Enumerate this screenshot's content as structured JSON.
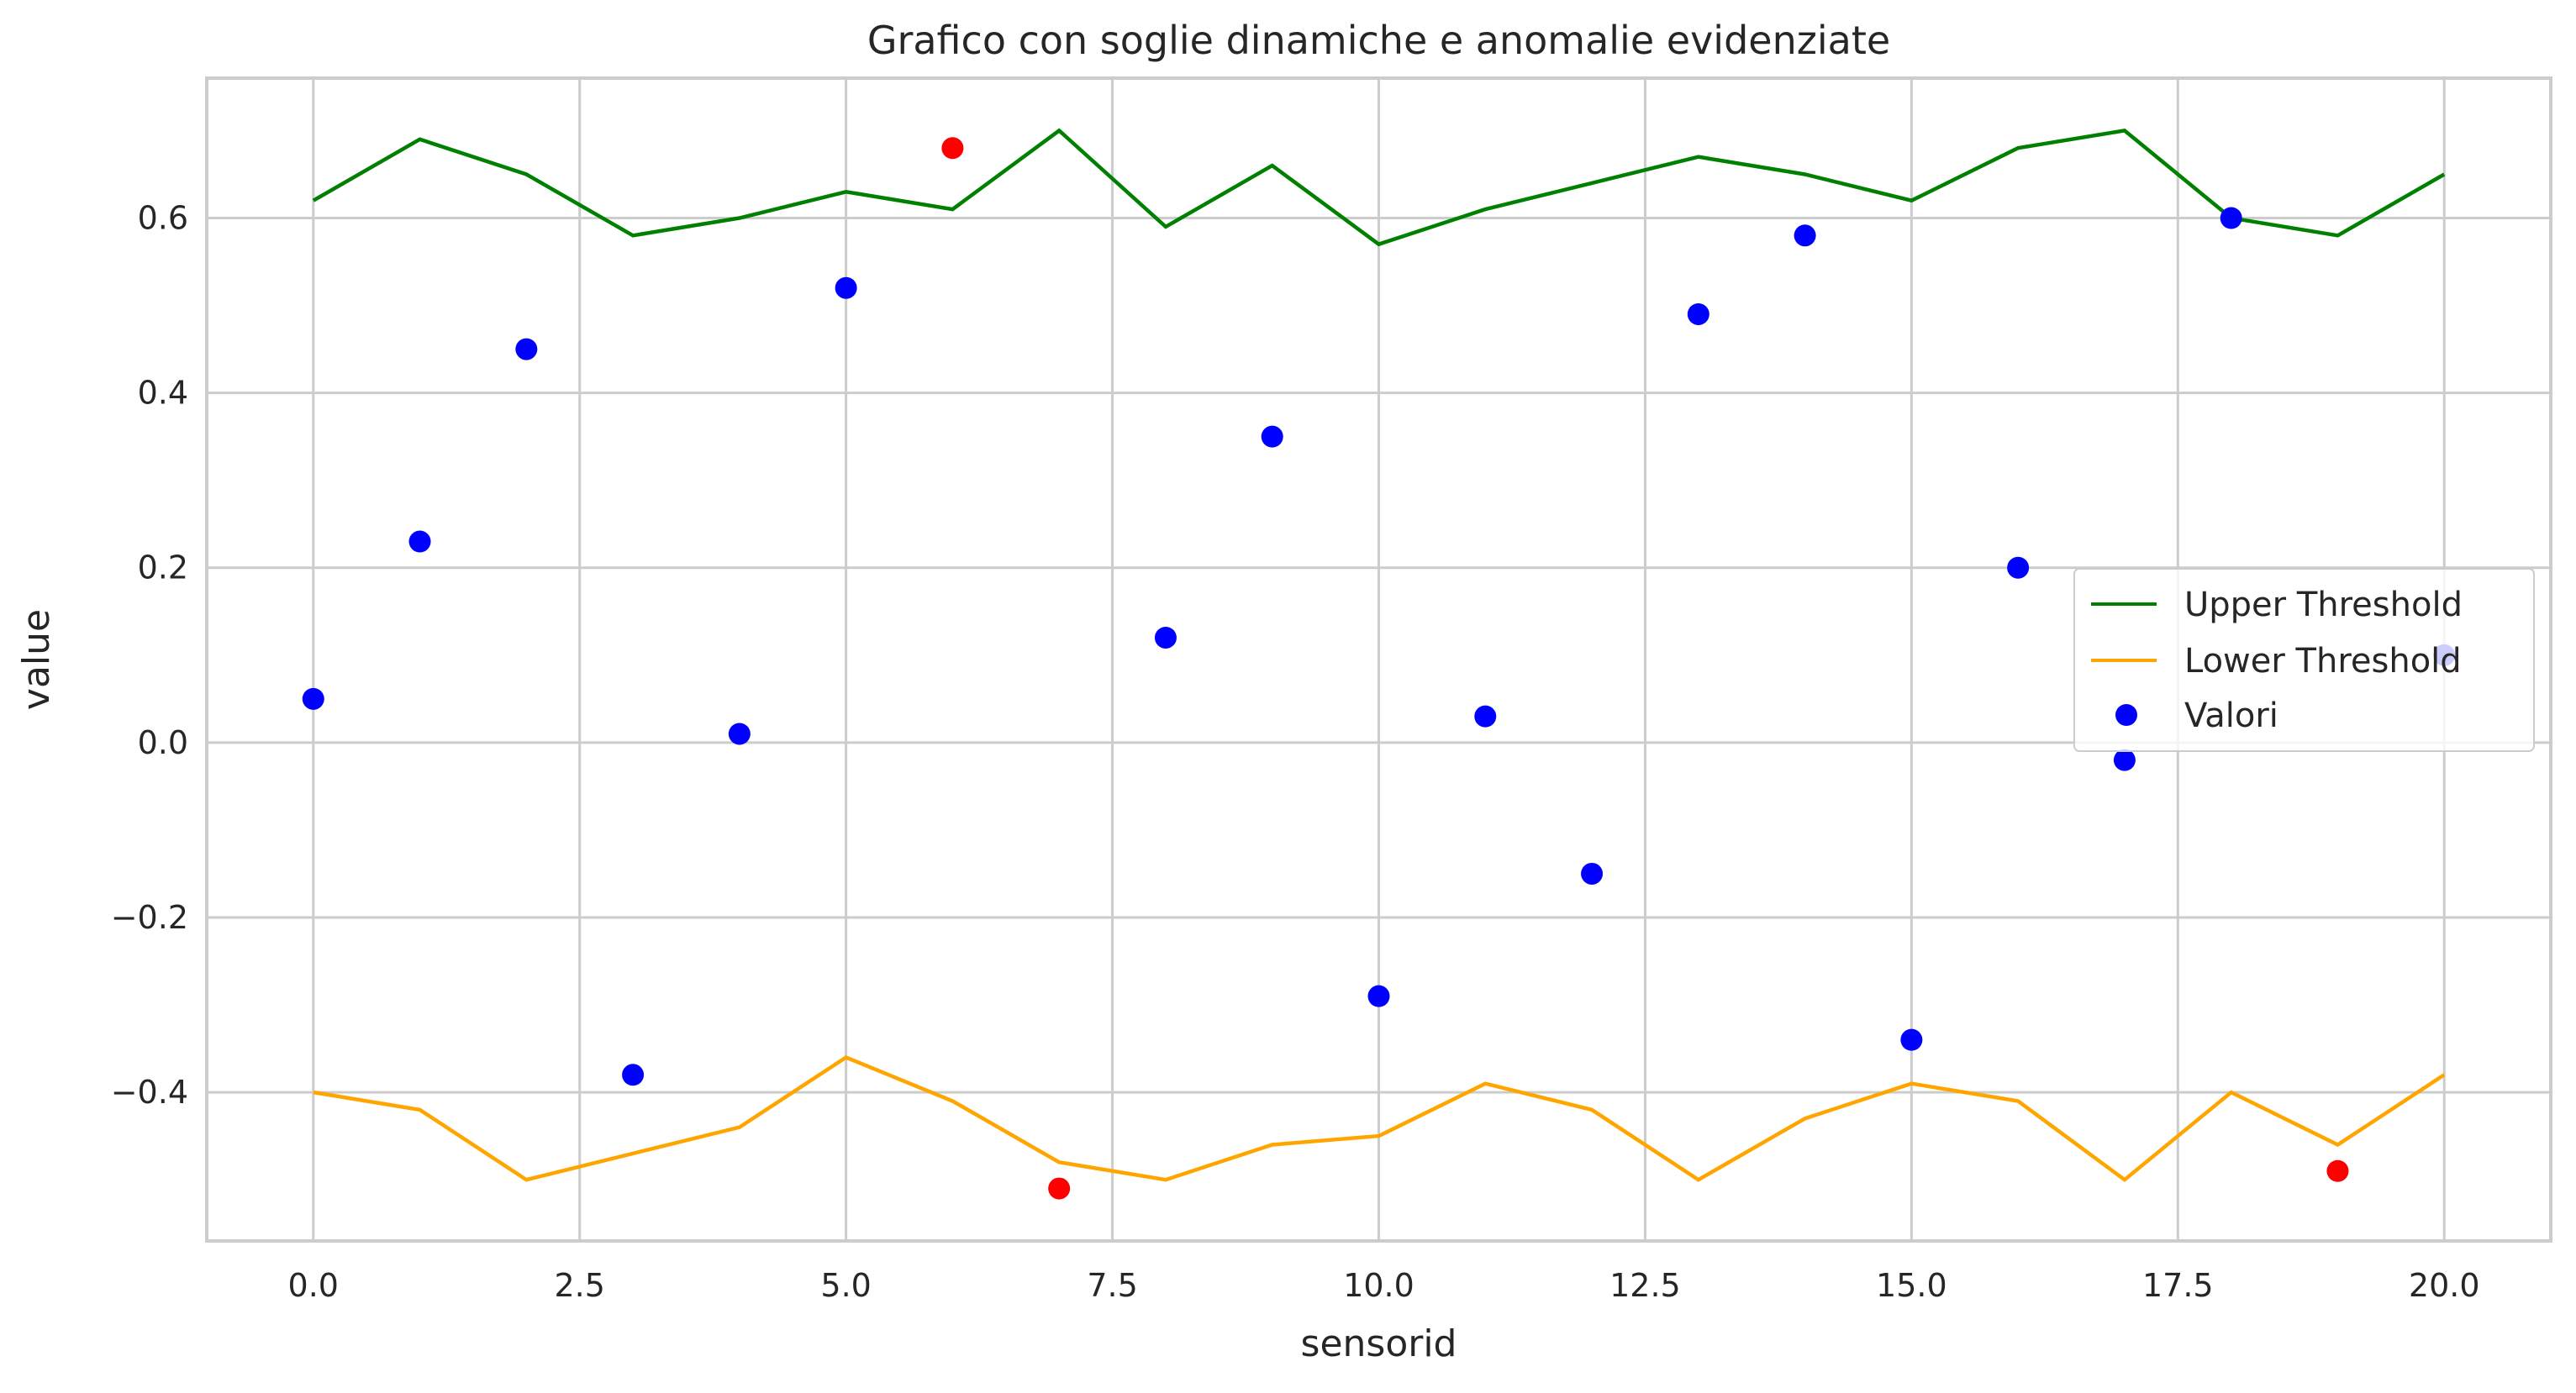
{
  "chart_data": {
    "type": "scatter",
    "title": "Grafico con soglie dinamiche e anomalie evidenziate",
    "xlabel": "sensorid",
    "ylabel": "value",
    "xlim": [
      -1,
      21
    ],
    "ylim": [
      -0.57,
      0.76
    ],
    "x_ticks": [
      0,
      2.5,
      5,
      7.5,
      10,
      12.5,
      15,
      17.5,
      20
    ],
    "x_tick_labels": [
      "0.0",
      "2.5",
      "5.0",
      "7.5",
      "10.0",
      "12.5",
      "15.0",
      "17.5",
      "20.0"
    ],
    "y_ticks": [
      -0.4,
      -0.2,
      0,
      0.2,
      0.4,
      0.6
    ],
    "y_tick_labels": [
      "−0.4",
      "−0.2",
      "0.0",
      "0.2",
      "0.4",
      "0.6"
    ],
    "grid": true,
    "legend_position": "center-right",
    "x": [
      0,
      1,
      2,
      3,
      4,
      5,
      6,
      7,
      8,
      9,
      10,
      11,
      12,
      13,
      14,
      15,
      16,
      17,
      18,
      19,
      20
    ],
    "series": [
      {
        "name": "Upper Threshold",
        "kind": "line",
        "color": "#008000",
        "values": [
          0.62,
          0.69,
          0.65,
          0.58,
          0.6,
          0.63,
          0.61,
          0.7,
          0.59,
          0.66,
          0.57,
          0.61,
          0.64,
          0.67,
          0.65,
          0.62,
          0.68,
          0.7,
          0.6,
          0.58,
          0.65
        ]
      },
      {
        "name": "Lower Threshold",
        "kind": "line",
        "color": "#FFA500",
        "values": [
          -0.4,
          -0.42,
          -0.5,
          -0.47,
          -0.44,
          -0.36,
          -0.41,
          -0.48,
          -0.5,
          -0.46,
          -0.45,
          -0.39,
          -0.42,
          -0.5,
          -0.43,
          -0.39,
          -0.41,
          -0.5,
          -0.4,
          -0.46,
          -0.38
        ]
      },
      {
        "name": "Valori",
        "kind": "scatter",
        "color": "#0000FF",
        "anomaly_color": "#FF0000",
        "values": [
          0.05,
          0.23,
          0.45,
          -0.38,
          0.01,
          0.52,
          0.68,
          -0.51,
          0.12,
          0.35,
          -0.29,
          0.03,
          -0.15,
          0.49,
          0.58,
          -0.34,
          0.2,
          -0.02,
          0.6,
          -0.49,
          0.1
        ],
        "anomaly": [
          false,
          false,
          false,
          false,
          false,
          false,
          true,
          true,
          false,
          false,
          false,
          false,
          false,
          false,
          false,
          false,
          false,
          false,
          false,
          true,
          false
        ]
      }
    ]
  }
}
